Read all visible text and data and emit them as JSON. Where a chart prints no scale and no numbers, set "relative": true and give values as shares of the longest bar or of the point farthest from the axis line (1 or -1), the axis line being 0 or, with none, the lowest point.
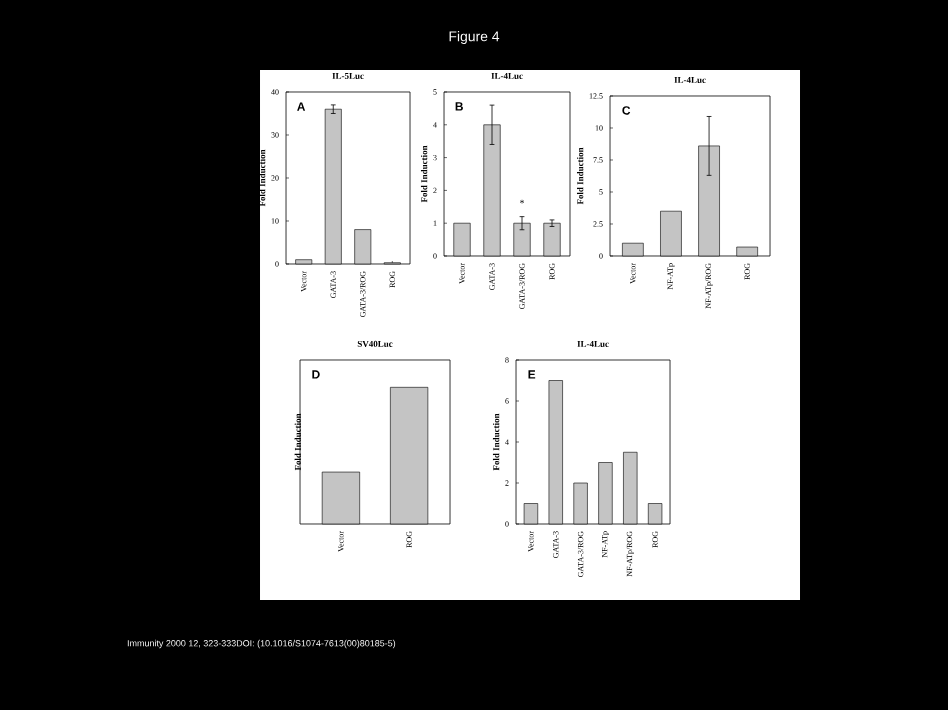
{
  "chart_data": [
    {
      "type": "bar",
      "title": "IL-5Luc",
      "ylabel": "Fold Induction",
      "categories": [
        "Vector",
        "GATA-3",
        "GATA-3/ROG",
        "ROG"
      ],
      "values": [
        1,
        36,
        8,
        0.3
      ],
      "errors": [
        null,
        1,
        null,
        null
      ],
      "color": "#c4c4c4",
      "ylim": [
        0,
        40
      ],
      "yticks": [
        0,
        10,
        20,
        30,
        40
      ],
      "annotations": [
        "A",
        "Figure 4",
        "Immunity 2000 12, 323-333DOI: (10.1016/S1074-7613(00)80185-5)"
      ]
    },
    {
      "type": "bar",
      "title": "IL-4Luc",
      "ylabel": "Fold Induction",
      "categories": [
        "Vector",
        "GATA-3",
        "GATA-3/ROG",
        "ROG"
      ],
      "values": [
        1,
        4,
        1,
        1
      ],
      "errors": [
        null,
        0.6,
        0.2,
        0.1
      ],
      "color": "#c4c4c4",
      "ylim": [
        0,
        5
      ],
      "yticks": [
        0,
        1,
        2,
        3,
        4,
        5
      ],
      "annotations": [
        "B",
        {
          "text": "*",
          "x": "GATA-3/ROG",
          "y": 1.3
        }
      ]
    },
    {
      "type": "bar",
      "title": "IL-4Luc",
      "ylabel": "Fold Induction",
      "categories": [
        "Vector",
        "NF-ATp",
        "NF-ATp/ROG",
        "ROG"
      ],
      "values": [
        1,
        3.5,
        8.6,
        0.7
      ],
      "errors": [
        null,
        null,
        2.3,
        null
      ],
      "color": "#c4c4c4",
      "ylim": [
        0,
        12.5
      ],
      "yticks": [
        0,
        2.5,
        5,
        7.5,
        10,
        12.5
      ],
      "annotations": [
        "C"
      ]
    },
    {
      "type": "bar",
      "title": "SV40Luc",
      "ylabel": "Fold Induction",
      "categories": [
        "Vector",
        "ROG"
      ],
      "values": [
        0.38,
        1
      ],
      "color": "#c4c4c4",
      "relative": true,
      "annotations": [
        "D"
      ]
    },
    {
      "type": "bar",
      "title": "IL-4Luc",
      "ylabel": "Fold Induction",
      "categories": [
        "Vector",
        "GATA-3",
        "GATA-3/ROG",
        "NF-ATp",
        "NF-ATp/ROG",
        "ROG"
      ],
      "values": [
        1,
        7,
        2,
        3,
        3.5,
        1
      ],
      "color": "#c4c4c4",
      "ylim": [
        0,
        8
      ],
      "yticks": [
        0,
        2,
        4,
        6,
        8
      ],
      "annotations": [
        "E"
      ]
    }
  ]
}
